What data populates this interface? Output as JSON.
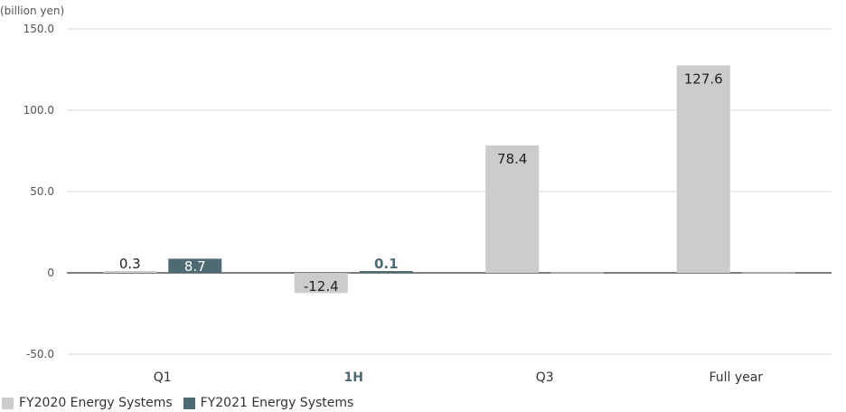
{
  "chart_data": {
    "type": "bar",
    "unit": "(billion yen)",
    "categories": [
      "Q1",
      "1H",
      "Q3",
      "Full year"
    ],
    "highlight_category": "1H",
    "yticks": [
      "150.0",
      "100.0",
      "50.0",
      "0",
      "-50.0"
    ],
    "ylim": [
      -50,
      150
    ],
    "grid": true,
    "legend_position": "bottom-left",
    "series": [
      {
        "name": "FY2020 Energy Systems",
        "color": "#cccccc",
        "values": [
          0.3,
          -12.4,
          78.4,
          127.6
        ],
        "labels": [
          "0.3",
          "-12.4",
          "78.4",
          "127.6"
        ]
      },
      {
        "name": "FY2021 Energy Systems",
        "color": "#4e6a73",
        "values": [
          8.7,
          0.1,
          null,
          null
        ],
        "labels": [
          "8.7",
          "0.1",
          "",
          ""
        ]
      }
    ]
  }
}
